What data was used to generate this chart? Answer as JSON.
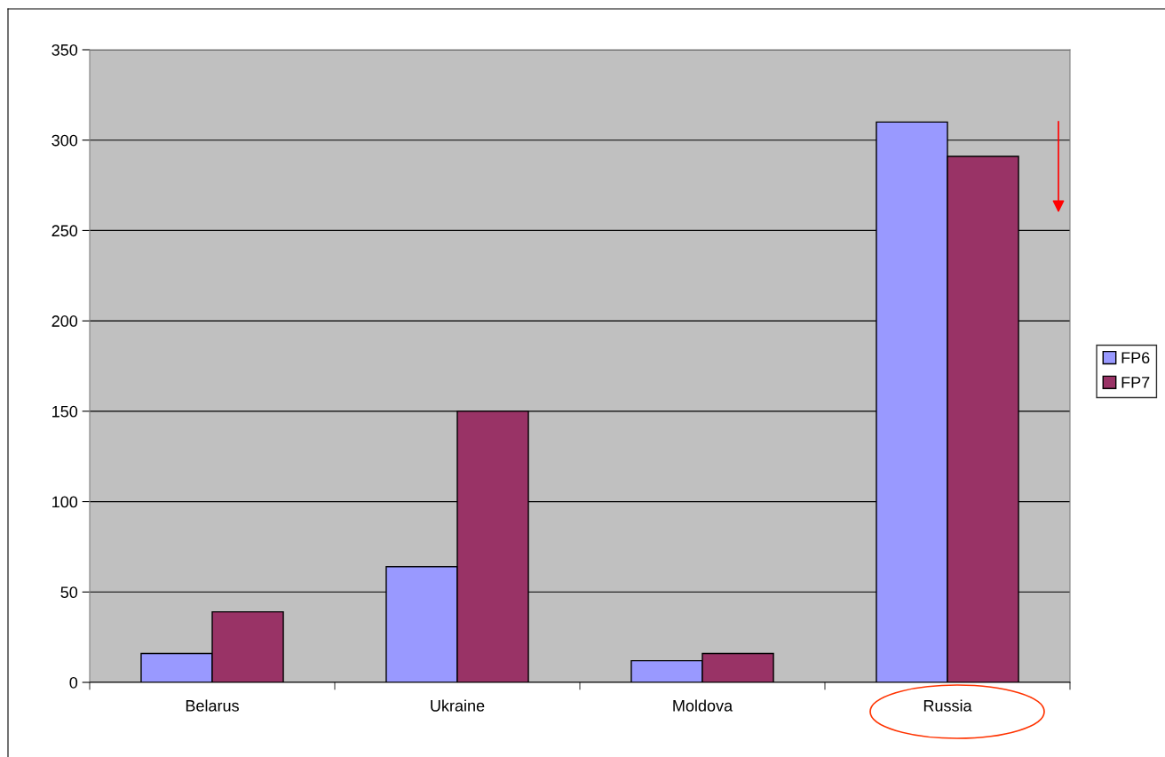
{
  "chart_data": {
    "type": "bar",
    "categories": [
      "Belarus",
      "Ukraine",
      "Moldova",
      "Russia"
    ],
    "series": [
      {
        "name": "FP6",
        "color": "#9999ff",
        "values": [
          16,
          64,
          12,
          310
        ]
      },
      {
        "name": "FP7",
        "color": "#993366",
        "values": [
          39,
          150,
          16,
          291
        ]
      }
    ],
    "ylim": [
      0,
      350
    ],
    "yticks": [
      0,
      50,
      100,
      150,
      200,
      250,
      300,
      350
    ],
    "grid": "y",
    "legend": "right"
  }
}
